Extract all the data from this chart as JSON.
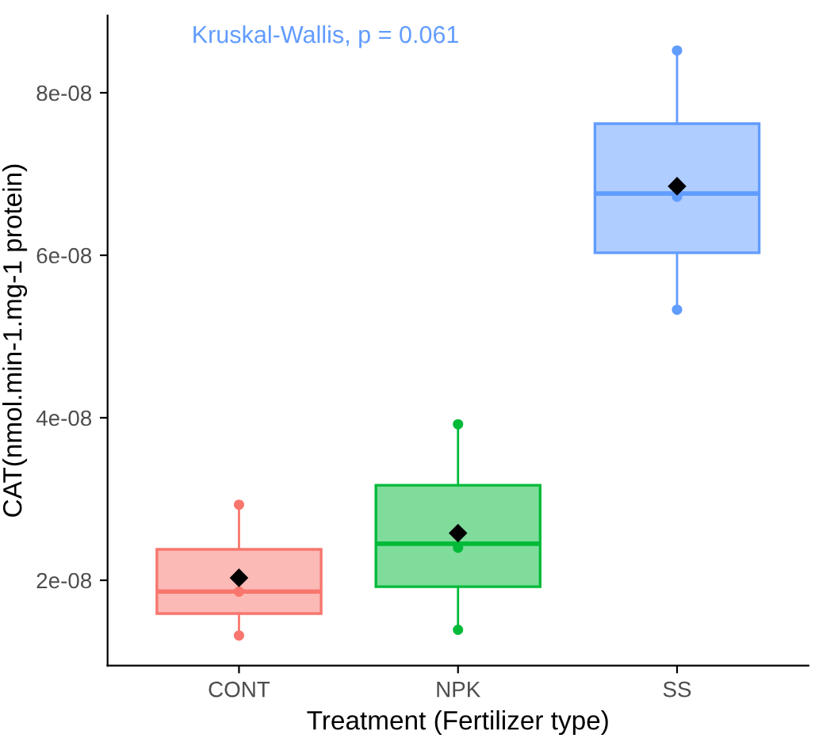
{
  "chart_data": {
    "type": "box",
    "xlabel": "Treatment (Fertilizer type)",
    "ylabel": "CAT(nmol.min-1.mg-1 protein)",
    "annotations": [
      "Kruskal-Wallis, p = 0.061"
    ],
    "categories": [
      "CONT",
      "NPK",
      "SS"
    ],
    "colors": [
      "#f8766d",
      "#00ba38",
      "#619cff"
    ],
    "boxes": [
      {
        "low": 1.32e-08,
        "q1": 1.59e-08,
        "median": 1.86e-08,
        "q3": 2.38e-08,
        "high": 2.93e-08,
        "mean": 2.03e-08
      },
      {
        "low": 1.39e-08,
        "q1": 1.92e-08,
        "median": 2.45e-08,
        "q3": 3.17e-08,
        "high": 3.92e-08,
        "mean": 2.58e-08
      },
      {
        "low": 5.33e-08,
        "q1": 6.03e-08,
        "median": 6.76e-08,
        "q3": 7.62e-08,
        "high": 8.52e-08,
        "mean": 6.85e-08
      }
    ],
    "series": [
      {
        "type": "scatter",
        "x": [
          "CONT",
          "CONT",
          "CONT",
          "NPK",
          "NPK",
          "NPK",
          "SS",
          "SS",
          "SS"
        ],
        "values": [
          2.93e-08,
          1.86e-08,
          1.32e-08,
          3.92e-08,
          2.4e-08,
          1.39e-08,
          8.52e-08,
          6.72e-08,
          5.33e-08
        ],
        "colors": [
          "#f8766d",
          "#f8766d",
          "#f8766d",
          "#00ba38",
          "#00ba38",
          "#00ba38",
          "#619cff",
          "#619cff",
          "#619cff"
        ]
      }
    ],
    "ylim": [
      9.5e-09,
      8.95e-08
    ],
    "yticks": [
      2e-08,
      4e-08,
      6e-08,
      8e-08
    ],
    "grid": false,
    "marker": "circle"
  }
}
